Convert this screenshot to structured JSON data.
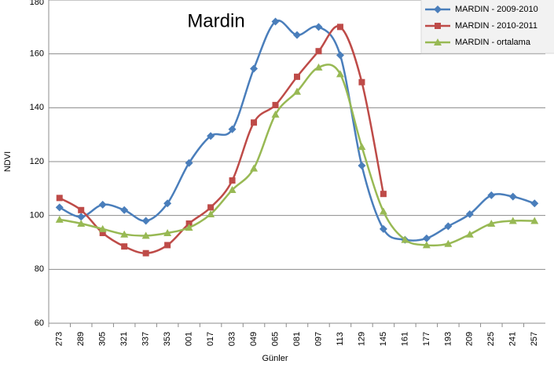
{
  "chart_data": {
    "type": "line",
    "title": "Mardin",
    "x_label": "Günler",
    "y_label": "NDVI",
    "categories": [
      "273",
      "289",
      "305",
      "321",
      "337",
      "353",
      "001",
      "017",
      "033",
      "049",
      "065",
      "081",
      "097",
      "113",
      "129",
      "145",
      "161",
      "177",
      "193",
      "209",
      "225",
      "241",
      "257"
    ],
    "series": [
      {
        "name": "MARDIN - 2009-2010",
        "color": "#4a7ebb",
        "marker": "diamond",
        "values": [
          103,
          99.5,
          104,
          102,
          98,
          104.5,
          119.5,
          129.5,
          132,
          154.5,
          172,
          167,
          170,
          159.5,
          118.5,
          95,
          91,
          91.5,
          96,
          100.5,
          107.5,
          107,
          104.5
        ]
      },
      {
        "name": "MARDIN - 2010-2011",
        "color": "#be4b48",
        "marker": "square",
        "values": [
          106.5,
          102,
          93.5,
          88.5,
          86,
          89,
          97,
          103,
          113,
          134.5,
          141,
          151.5,
          161,
          170,
          149.5,
          108,
          null,
          null,
          null,
          null,
          null,
          null,
          null
        ]
      },
      {
        "name": "MARDIN - ortalama",
        "color": "#98b954",
        "marker": "triangle",
        "values": [
          98.5,
          97,
          95,
          93,
          92.5,
          93.5,
          95.5,
          100.5,
          109.5,
          117.5,
          137.5,
          146,
          155,
          152.5,
          125.5,
          101.5,
          91,
          89,
          89.5,
          93,
          97,
          98,
          98
        ]
      }
    ],
    "ylim": [
      60,
      180
    ],
    "yticks": [
      60,
      80,
      100,
      120,
      140,
      160,
      180
    ],
    "grid": true,
    "legend": "top-right"
  }
}
